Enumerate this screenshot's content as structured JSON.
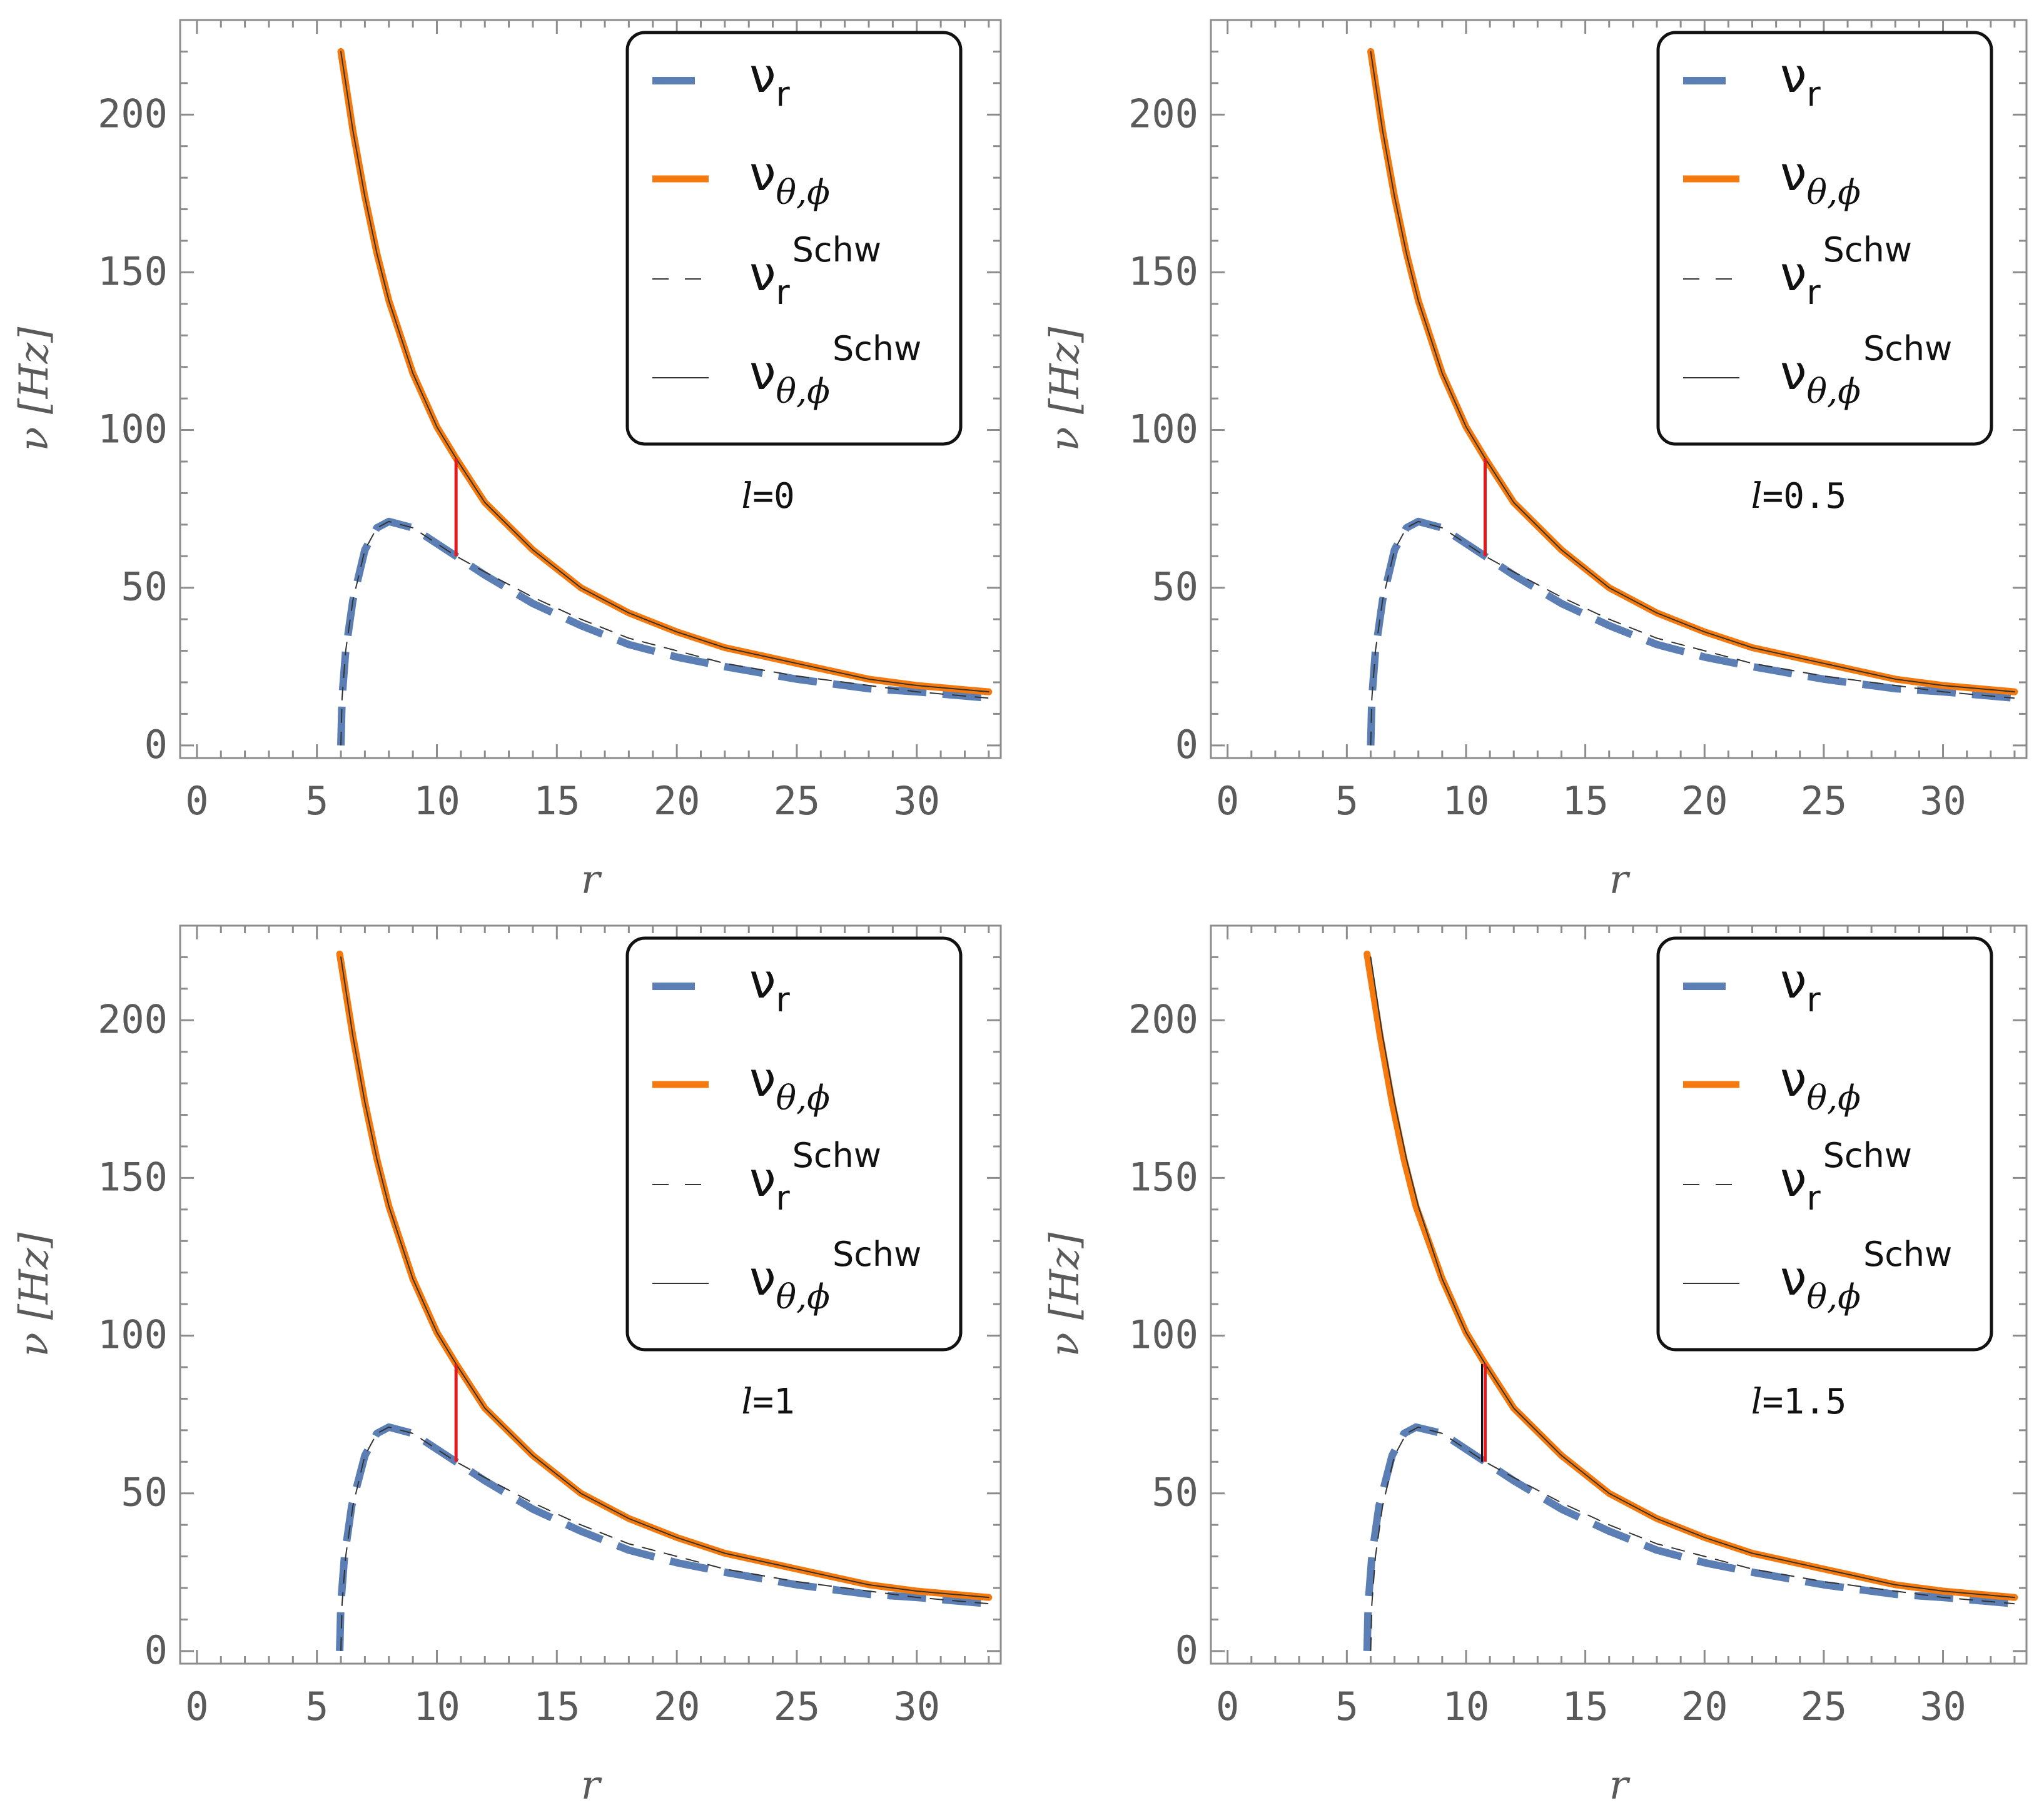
{
  "chart_data": [
    {
      "type": "line",
      "annotation": "l=0",
      "xlabel": "r",
      "ylabel": "ν [Hz]",
      "xlim": [
        -0.7,
        33.5
      ],
      "ylim": [
        -4,
        230
      ],
      "xticks": [
        "0",
        "5",
        "10",
        "15",
        "20",
        "25",
        "30"
      ],
      "yticks": [
        "0",
        "50",
        "100",
        "150",
        "200"
      ],
      "legend": [
        "ν_r",
        "ν_θ,ϕ",
        "ν_r^Schw",
        "ν_θ,ϕ^Schw"
      ],
      "marker": {
        "r": 10.8,
        "y_bottom": 60,
        "y_top": 91,
        "color": "#e31a1c"
      },
      "series": [
        {
          "name": "ν_r",
          "color": "#5b7fb5",
          "style": "dashed-thick",
          "x": [
            6.0,
            6.05,
            6.2,
            6.5,
            7.0,
            7.5,
            8.0,
            9.0,
            10.0,
            10.8,
            12,
            14,
            16,
            18,
            20,
            22,
            25,
            28,
            30,
            33
          ],
          "y": [
            0,
            15,
            30,
            46,
            62,
            69,
            71,
            69,
            64,
            60,
            54,
            45,
            38,
            32,
            28,
            25,
            21,
            18,
            17,
            15
          ]
        },
        {
          "name": "ν_θ,ϕ",
          "color": "#f5790c",
          "style": "solid-thick",
          "x": [
            6,
            6.5,
            7,
            7.5,
            8,
            9,
            10,
            10.8,
            12,
            14,
            16,
            18,
            20,
            22,
            25,
            28,
            30,
            33
          ],
          "y": [
            220,
            195,
            174,
            156,
            141,
            118,
            101,
            91,
            77,
            62,
            50,
            42,
            36,
            31,
            26,
            21,
            19,
            17
          ]
        },
        {
          "name": "ν_r^Schw",
          "color": "#333333",
          "style": "dashed-thin",
          "x": [
            6.0,
            6.05,
            6.2,
            6.5,
            7.0,
            7.5,
            8.0,
            9.0,
            10.0,
            10.8,
            12,
            14,
            16,
            18,
            20,
            22,
            25,
            28,
            30,
            33
          ],
          "y": [
            0,
            15,
            30,
            46,
            62,
            69,
            71,
            69,
            64,
            60,
            55,
            47,
            40,
            34,
            30,
            26,
            22,
            19,
            17,
            15
          ]
        },
        {
          "name": "ν_θ,ϕ^Schw",
          "color": "#333333",
          "style": "solid-thin",
          "x": [
            6,
            6.5,
            7,
            7.5,
            8,
            9,
            10,
            10.8,
            12,
            14,
            16,
            18,
            20,
            22,
            25,
            28,
            30,
            33
          ],
          "y": [
            220,
            195,
            174,
            156,
            141,
            118,
            101,
            91,
            77,
            62,
            50,
            42,
            36,
            31,
            26,
            21,
            19,
            17
          ]
        }
      ]
    },
    {
      "type": "line",
      "annotation": "l=0.5",
      "xlabel": "r",
      "ylabel": "ν [Hz]",
      "xlim": [
        -0.7,
        33.5
      ],
      "ylim": [
        -4,
        230
      ],
      "xticks": [
        "0",
        "5",
        "10",
        "15",
        "20",
        "25",
        "30"
      ],
      "yticks": [
        "0",
        "50",
        "100",
        "150",
        "200"
      ],
      "legend": [
        "ν_r",
        "ν_θ,ϕ",
        "ν_r^Schw",
        "ν_θ,ϕ^Schw"
      ],
      "marker": {
        "r": 10.8,
        "y_bottom": 60,
        "y_top": 91,
        "color": "#e31a1c"
      },
      "series": [
        {
          "name": "ν_r",
          "color": "#5b7fb5",
          "style": "dashed-thick",
          "x": [
            6.0,
            6.05,
            6.2,
            6.5,
            7.0,
            7.5,
            8.0,
            9.0,
            10.0,
            10.8,
            12,
            14,
            16,
            18,
            20,
            22,
            25,
            28,
            30,
            33
          ],
          "y": [
            0,
            15,
            30,
            46,
            62,
            69,
            71,
            69,
            64,
            60,
            54,
            45,
            38,
            32,
            28,
            25,
            21,
            18,
            17,
            15
          ]
        },
        {
          "name": "ν_θ,ϕ",
          "color": "#f5790c",
          "style": "solid-thick",
          "x": [
            6,
            6.5,
            7,
            7.5,
            8,
            9,
            10,
            10.8,
            12,
            14,
            16,
            18,
            20,
            22,
            25,
            28,
            30,
            33
          ],
          "y": [
            220,
            195,
            174,
            156,
            141,
            118,
            101,
            91,
            77,
            62,
            50,
            42,
            36,
            31,
            26,
            21,
            19,
            17
          ]
        },
        {
          "name": "ν_r^Schw",
          "color": "#333333",
          "style": "dashed-thin",
          "x": [
            6.0,
            6.05,
            6.2,
            6.5,
            7.0,
            7.5,
            8.0,
            9.0,
            10.0,
            10.8,
            12,
            14,
            16,
            18,
            20,
            22,
            25,
            28,
            30,
            33
          ],
          "y": [
            0,
            15,
            30,
            46,
            62,
            69,
            71,
            69,
            64,
            60,
            55,
            47,
            40,
            34,
            30,
            26,
            22,
            19,
            17,
            15
          ]
        },
        {
          "name": "ν_θ,ϕ^Schw",
          "color": "#333333",
          "style": "solid-thin",
          "x": [
            6,
            6.5,
            7,
            7.5,
            8,
            9,
            10,
            10.8,
            12,
            14,
            16,
            18,
            20,
            22,
            25,
            28,
            30,
            33
          ],
          "y": [
            220,
            195,
            174,
            156,
            141,
            118,
            101,
            91,
            77,
            62,
            50,
            42,
            36,
            31,
            26,
            21,
            19,
            17
          ]
        }
      ]
    },
    {
      "type": "line",
      "annotation": "l=1",
      "xlabel": "r",
      "ylabel": "ν [Hz]",
      "xlim": [
        -0.7,
        33.5
      ],
      "ylim": [
        -4,
        230
      ],
      "xticks": [
        "0",
        "5",
        "10",
        "15",
        "20",
        "25",
        "30"
      ],
      "yticks": [
        "0",
        "50",
        "100",
        "150",
        "200"
      ],
      "legend": [
        "ν_r",
        "ν_θ,ϕ",
        "ν_r^Schw",
        "ν_θ,ϕ^Schw"
      ],
      "marker": {
        "r": 10.8,
        "y_bottom": 60,
        "y_top": 91,
        "color": "#e31a1c"
      },
      "series": [
        {
          "name": "ν_r",
          "color": "#5b7fb5",
          "style": "dashed-thick",
          "x": [
            5.95,
            6.0,
            6.15,
            6.45,
            7.0,
            7.5,
            8.0,
            9.0,
            10.0,
            10.8,
            12,
            14,
            16,
            18,
            20,
            22,
            25,
            28,
            30,
            33
          ],
          "y": [
            0,
            15,
            30,
            46,
            62,
            69,
            71,
            69,
            64,
            60,
            54,
            45,
            38,
            32,
            28,
            25,
            21,
            18,
            17,
            15
          ]
        },
        {
          "name": "ν_θ,ϕ",
          "color": "#f5790c",
          "style": "solid-thick",
          "x": [
            5.95,
            6.5,
            7,
            7.5,
            8,
            9,
            10,
            10.8,
            12,
            14,
            16,
            18,
            20,
            22,
            25,
            28,
            30,
            33
          ],
          "y": [
            221,
            195,
            174,
            156,
            141,
            118,
            101,
            91,
            77,
            62,
            50,
            42,
            36,
            31,
            26,
            21,
            19,
            17
          ]
        },
        {
          "name": "ν_r^Schw",
          "color": "#333333",
          "style": "dashed-thin",
          "x": [
            6.0,
            6.05,
            6.2,
            6.5,
            7.0,
            7.5,
            8.0,
            9.0,
            10.0,
            10.8,
            12,
            14,
            16,
            18,
            20,
            22,
            25,
            28,
            30,
            33
          ],
          "y": [
            0,
            15,
            30,
            46,
            62,
            69,
            71,
            69,
            64,
            60,
            55,
            47,
            40,
            34,
            30,
            26,
            22,
            19,
            17,
            15
          ]
        },
        {
          "name": "ν_θ,ϕ^Schw",
          "color": "#333333",
          "style": "solid-thin",
          "x": [
            6,
            6.5,
            7,
            7.5,
            8,
            9,
            10,
            10.8,
            12,
            14,
            16,
            18,
            20,
            22,
            25,
            28,
            30,
            33
          ],
          "y": [
            220,
            195,
            174,
            156,
            141,
            118,
            101,
            91,
            77,
            62,
            50,
            42,
            36,
            31,
            26,
            21,
            19,
            17
          ]
        }
      ]
    },
    {
      "type": "line",
      "annotation": "l=1.5",
      "xlabel": "r",
      "ylabel": "ν [Hz]",
      "xlim": [
        -0.7,
        33.5
      ],
      "ylim": [
        -4,
        230
      ],
      "xticks": [
        "0",
        "5",
        "10",
        "15",
        "20",
        "25",
        "30"
      ],
      "yticks": [
        "0",
        "50",
        "100",
        "150",
        "200"
      ],
      "legend": [
        "ν_r",
        "ν_θ,ϕ",
        "ν_r^Schw",
        "ν_θ,ϕ^Schw"
      ],
      "marker": {
        "r": 10.8,
        "y_bottom": 60,
        "y_top": 91,
        "color": "#e31a1c"
      },
      "series": [
        {
          "name": "ν_r",
          "color": "#5b7fb5",
          "style": "dashed-thick",
          "x": [
            5.85,
            5.9,
            6.05,
            6.35,
            6.9,
            7.4,
            7.9,
            9.0,
            10.0,
            10.8,
            12,
            14,
            16,
            18,
            20,
            22,
            25,
            28,
            30,
            33
          ],
          "y": [
            0,
            15,
            30,
            46,
            62,
            69,
            71,
            69,
            64,
            60,
            54,
            45,
            38,
            32,
            28,
            25,
            21,
            18,
            17,
            15
          ]
        },
        {
          "name": "ν_θ,ϕ",
          "color": "#f5790c",
          "style": "solid-thick",
          "x": [
            5.85,
            6.4,
            6.9,
            7.4,
            7.9,
            9,
            10,
            10.8,
            12,
            14,
            16,
            18,
            20,
            22,
            25,
            28,
            30,
            33
          ],
          "y": [
            221,
            195,
            174,
            156,
            141,
            118,
            101,
            91,
            77,
            62,
            50,
            42,
            36,
            31,
            26,
            21,
            19,
            17
          ]
        },
        {
          "name": "ν_r^Schw",
          "color": "#333333",
          "style": "dashed-thin",
          "x": [
            6.0,
            6.05,
            6.2,
            6.5,
            7.0,
            7.5,
            8.0,
            9.0,
            10.0,
            10.8,
            12,
            14,
            16,
            18,
            20,
            22,
            25,
            28,
            30,
            33
          ],
          "y": [
            0,
            15,
            30,
            46,
            62,
            69,
            71,
            69,
            64,
            60,
            55,
            47,
            40,
            34,
            30,
            26,
            22,
            19,
            17,
            15
          ]
        },
        {
          "name": "ν_θ,ϕ^Schw",
          "color": "#333333",
          "style": "solid-thin",
          "x": [
            6,
            6.5,
            7,
            7.5,
            8,
            9,
            10,
            10.8,
            12,
            14,
            16,
            18,
            20,
            22,
            25,
            28,
            30,
            33
          ],
          "y": [
            220,
            195,
            174,
            156,
            141,
            118,
            101,
            91,
            77,
            62,
            50,
            42,
            36,
            31,
            26,
            21,
            19,
            17
          ]
        }
      ]
    }
  ]
}
